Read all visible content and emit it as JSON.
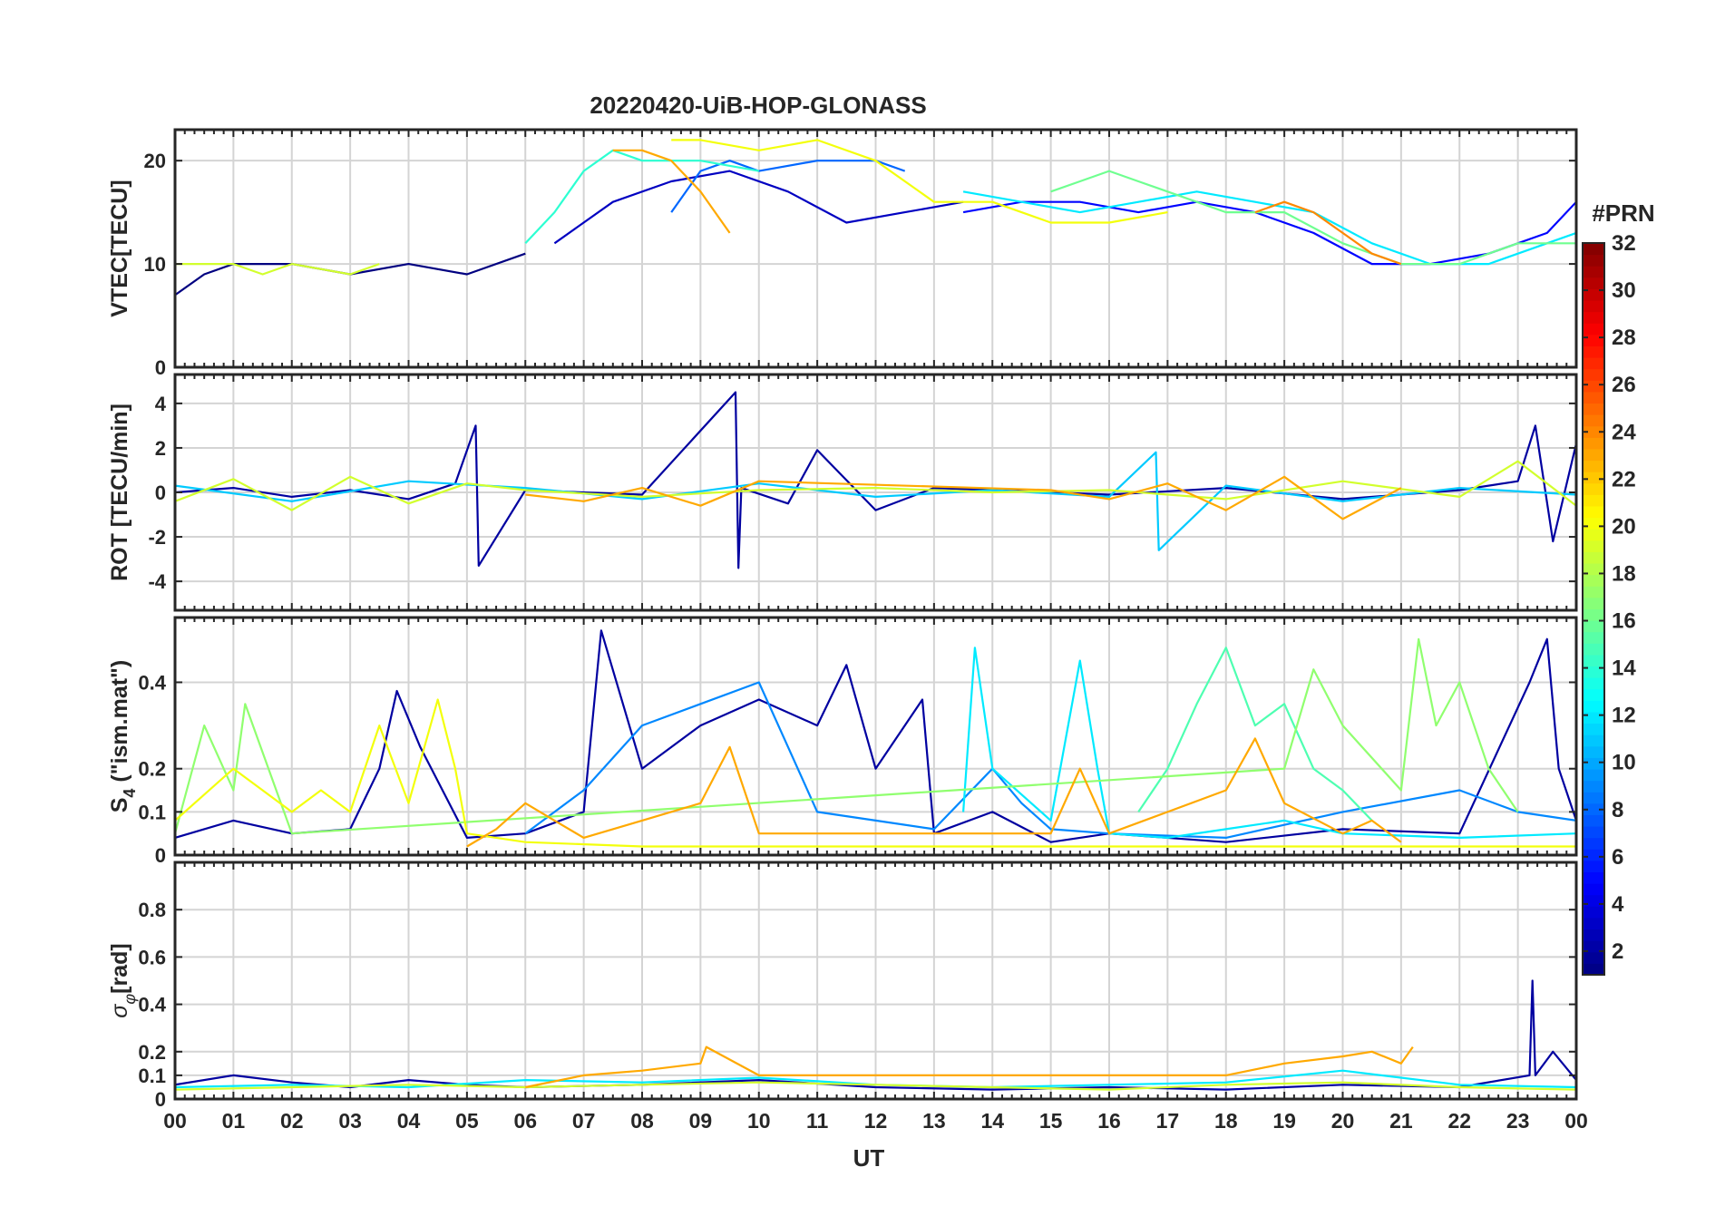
{
  "title": "20220420-UiB-HOP-GLONASS",
  "colorbar_label": "#PRN",
  "colorbar_range": [
    1,
    32
  ],
  "colorbar_ticks": [
    2,
    4,
    6,
    8,
    10,
    12,
    14,
    16,
    18,
    20,
    22,
    24,
    26,
    28,
    30,
    32
  ],
  "x_tick_labels": [
    "00",
    "01",
    "02",
    "03",
    "04",
    "05",
    "06",
    "07",
    "08",
    "09",
    "10",
    "11",
    "12",
    "13",
    "14",
    "15",
    "16",
    "17",
    "18",
    "19",
    "20",
    "21",
    "22",
    "23",
    "00"
  ],
  "xlabel": "UT",
  "colors": {
    "axes": "#262626",
    "grid": "#d4d4d4"
  },
  "chart_data": [
    {
      "type": "line",
      "panel": "vtec",
      "ylabel": "VTEC[TECU]",
      "ylim": [
        0,
        23
      ],
      "yticks": [
        0,
        10,
        20
      ],
      "xlim": [
        0,
        24
      ],
      "grid": true,
      "series": [
        {
          "prn": 1,
          "x": [
            0.0,
            0.5,
            1.0,
            2.0,
            3.0,
            4.0,
            5.0,
            6.0
          ],
          "y": [
            7,
            9,
            10,
            10,
            9,
            10,
            9,
            11
          ]
        },
        {
          "prn": 3,
          "x": [
            6.5,
            7.5,
            8.5,
            9.5,
            10.5,
            11.5,
            12.5,
            13.5
          ],
          "y": [
            12,
            16,
            18,
            19,
            17,
            14,
            15,
            16
          ]
        },
        {
          "prn": 5,
          "x": [
            13.5,
            14.5,
            15.5,
            16.5,
            17.5,
            18.5,
            19.5,
            20.5,
            21.5,
            22.5,
            23.5,
            24.0
          ],
          "y": [
            15,
            16,
            16,
            15,
            16,
            15,
            13,
            10,
            10,
            11,
            13,
            16
          ]
        },
        {
          "prn": 8,
          "x": [
            8.5,
            9.0,
            9.5,
            10.0,
            11.0,
            12.0,
            12.5
          ],
          "y": [
            15,
            19,
            20,
            19,
            20,
            20,
            19
          ]
        },
        {
          "prn": 12,
          "x": [
            13.5,
            14.5,
            15.5,
            16.5,
            17.5,
            18.5,
            19.5,
            20.5,
            21.5,
            22.5,
            23.5,
            24.0
          ],
          "y": [
            17,
            16,
            15,
            16,
            17,
            16,
            15,
            12,
            10,
            10,
            12,
            13
          ]
        },
        {
          "prn": 14,
          "x": [
            6.0,
            6.5,
            7.0,
            7.5,
            8.0,
            9.0,
            10.0
          ],
          "y": [
            12,
            15,
            19,
            21,
            20,
            20,
            19
          ]
        },
        {
          "prn": 16,
          "x": [
            15.0,
            15.5,
            16.0,
            16.5,
            17.0,
            17.5,
            18.0,
            19.0,
            20.0,
            21.0,
            22.0,
            23.0,
            24.0
          ],
          "y": [
            17,
            18,
            19,
            18,
            17,
            16,
            15,
            15,
            12,
            10,
            10,
            12,
            12
          ]
        },
        {
          "prn": 19,
          "x": [
            0.0,
            0.5,
            1.0,
            1.5,
            2.0,
            3.0,
            3.5
          ],
          "y": [
            10,
            10,
            10,
            9,
            10,
            9,
            10
          ]
        },
        {
          "prn": 20,
          "x": [
            8.5,
            9.0,
            10.0,
            11.0,
            12.0,
            13.0,
            14.0,
            15.0,
            16.0,
            17.0
          ],
          "y": [
            22,
            22,
            21,
            22,
            20,
            16,
            16,
            14,
            14,
            15
          ]
        },
        {
          "prn": 23,
          "x": [
            7.5,
            8.0,
            8.5,
            9.0,
            9.5
          ],
          "y": [
            21,
            21,
            20,
            17,
            13
          ]
        },
        {
          "prn": 24,
          "x": [
            18.5,
            19.0,
            19.5,
            20.0,
            20.5,
            21.0
          ],
          "y": [
            15,
            16,
            15,
            13,
            11,
            10
          ]
        }
      ]
    },
    {
      "type": "line",
      "panel": "rot",
      "ylabel": "ROT [TECU/min]",
      "ylim": [
        -5.3,
        5.3
      ],
      "yticks": [
        -4,
        -2,
        0,
        2,
        4
      ],
      "xlim": [
        0,
        24
      ],
      "grid": true,
      "series": [
        {
          "prn": 2,
          "x": [
            0,
            1,
            2,
            3,
            4,
            4.8,
            5.15,
            5.2,
            6,
            8,
            9.6,
            9.65,
            9.7,
            10.5,
            11,
            12,
            13,
            14,
            16,
            18,
            20,
            22,
            23,
            23.3,
            23.6,
            24
          ],
          "y": [
            0,
            0.2,
            -0.2,
            0.1,
            -0.3,
            0.4,
            3.0,
            -3.3,
            0.1,
            -0.1,
            4.5,
            -3.4,
            0.2,
            -0.5,
            1.9,
            -0.8,
            0.2,
            0.1,
            -0.1,
            0.2,
            -0.3,
            0.1,
            0.5,
            3.0,
            -2.2,
            2.2
          ]
        },
        {
          "prn": 11,
          "x": [
            0,
            2,
            4,
            6,
            8,
            10,
            12,
            14,
            16,
            16.8,
            16.85,
            18,
            20,
            22,
            24
          ],
          "y": [
            0.3,
            -0.4,
            0.5,
            0.2,
            -0.3,
            0.4,
            -0.2,
            0.1,
            -0.2,
            1.8,
            -2.6,
            0.3,
            -0.4,
            0.2,
            -0.1
          ]
        },
        {
          "prn": 19,
          "x": [
            0,
            1,
            2,
            3,
            4,
            5,
            6,
            8,
            10,
            12,
            14,
            16,
            18,
            20,
            22,
            23,
            24
          ],
          "y": [
            -0.4,
            0.6,
            -0.8,
            0.7,
            -0.5,
            0.4,
            0.1,
            -0.2,
            0.1,
            0.2,
            0,
            0.1,
            -0.3,
            0.5,
            -0.2,
            1.4,
            -0.6
          ]
        },
        {
          "prn": 23,
          "x": [
            6,
            7,
            8,
            9,
            10,
            15,
            16,
            17,
            18,
            19,
            20,
            21
          ],
          "y": [
            -0.1,
            -0.4,
            0.2,
            -0.6,
            0.5,
            0.1,
            -0.3,
            0.4,
            -0.8,
            0.7,
            -1.2,
            0.2
          ]
        }
      ]
    },
    {
      "type": "line",
      "panel": "s4",
      "ylabel": "S4 (\"ism.mat\")",
      "ylim": [
        0,
        0.55
      ],
      "yticks": [
        0,
        0.1,
        0.2,
        0.4
      ],
      "xlim": [
        0,
        24
      ],
      "grid": true,
      "series": [
        {
          "prn": 2,
          "x": [
            0,
            1,
            2,
            3,
            3.5,
            3.8,
            4.2,
            5,
            6,
            7,
            7.3,
            8,
            9,
            10,
            11,
            11.5,
            12,
            12.8,
            13,
            14,
            15,
            16,
            18,
            20,
            22,
            23.2,
            23.5,
            23.7,
            24
          ],
          "y": [
            0.04,
            0.08,
            0.05,
            0.06,
            0.2,
            0.38,
            0.25,
            0.04,
            0.05,
            0.1,
            0.52,
            0.2,
            0.3,
            0.36,
            0.3,
            0.44,
            0.2,
            0.36,
            0.05,
            0.1,
            0.03,
            0.05,
            0.03,
            0.06,
            0.05,
            0.4,
            0.5,
            0.2,
            0.08
          ]
        },
        {
          "prn": 9,
          "x": [
            6,
            7,
            8,
            9,
            10,
            11,
            12,
            13,
            14,
            14.5,
            15,
            16,
            18,
            20,
            22,
            23,
            24
          ],
          "y": [
            0.05,
            0.15,
            0.3,
            0.35,
            0.4,
            0.1,
            0.08,
            0.06,
            0.2,
            0.12,
            0.06,
            0.05,
            0.04,
            0.1,
            0.15,
            0.1,
            0.08
          ]
        },
        {
          "prn": 12,
          "x": [
            13.5,
            13.7,
            14,
            15,
            15.5,
            15.8,
            16,
            17,
            18,
            19,
            20,
            22,
            24
          ],
          "y": [
            0.1,
            0.48,
            0.2,
            0.08,
            0.45,
            0.2,
            0.05,
            0.04,
            0.06,
            0.08,
            0.05,
            0.04,
            0.05
          ]
        },
        {
          "prn": 15,
          "x": [
            16.5,
            17,
            17.5,
            18,
            18.5,
            19,
            19.5,
            20,
            20.5
          ],
          "y": [
            0.1,
            0.2,
            0.35,
            0.48,
            0.3,
            0.35,
            0.2,
            0.15,
            0.08
          ]
        },
        {
          "prn": 17,
          "x": [
            0,
            0.5,
            1,
            1.2,
            2,
            19,
            19.5,
            20,
            21,
            21.3,
            21.6,
            22,
            22.5,
            23
          ],
          "y": [
            0.05,
            0.3,
            0.15,
            0.35,
            0.05,
            0.2,
            0.43,
            0.3,
            0.15,
            0.5,
            0.3,
            0.4,
            0.2,
            0.1
          ]
        },
        {
          "prn": 20,
          "x": [
            0,
            1,
            2,
            2.5,
            3,
            3.5,
            4,
            4.5,
            4.8,
            5,
            6,
            8,
            10,
            12,
            24
          ],
          "y": [
            0.08,
            0.2,
            0.1,
            0.15,
            0.1,
            0.3,
            0.12,
            0.36,
            0.2,
            0.05,
            0.03,
            0.02,
            0.02,
            0.02,
            0.02
          ]
        },
        {
          "prn": 23,
          "x": [
            5,
            5.5,
            6,
            6.5,
            7,
            7.5,
            8,
            9,
            9.5,
            10,
            15,
            15.5,
            16,
            17,
            18,
            18.5,
            19,
            20,
            20.5,
            21
          ],
          "y": [
            0.02,
            0.06,
            0.12,
            0.08,
            0.04,
            0.06,
            0.08,
            0.12,
            0.25,
            0.05,
            0.05,
            0.2,
            0.05,
            0.1,
            0.15,
            0.27,
            0.12,
            0.05,
            0.08,
            0.03
          ]
        }
      ]
    },
    {
      "type": "line",
      "panel": "sigma",
      "ylabel": "σφ[rad]",
      "ylim": [
        0,
        1
      ],
      "yticks": [
        0,
        0.1,
        0.2,
        0.4,
        0.6,
        0.8
      ],
      "xlim": [
        0,
        24
      ],
      "grid": true,
      "series": [
        {
          "prn": 2,
          "x": [
            0,
            1,
            2,
            3,
            4,
            5,
            6,
            8,
            10,
            12,
            14,
            16,
            18,
            20,
            22,
            23.2,
            23.25,
            23.3,
            23.6,
            24
          ],
          "y": [
            0.06,
            0.1,
            0.07,
            0.05,
            0.08,
            0.06,
            0.05,
            0.06,
            0.08,
            0.05,
            0.04,
            0.05,
            0.04,
            0.06,
            0.05,
            0.1,
            0.5,
            0.1,
            0.2,
            0.08
          ]
        },
        {
          "prn": 12,
          "x": [
            0,
            2,
            4,
            6,
            8,
            10,
            12,
            14,
            16,
            18,
            20,
            22,
            24
          ],
          "y": [
            0.05,
            0.06,
            0.05,
            0.08,
            0.07,
            0.09,
            0.06,
            0.05,
            0.06,
            0.07,
            0.12,
            0.06,
            0.05
          ]
        },
        {
          "prn": 19,
          "x": [
            0,
            2,
            4,
            6,
            8,
            10,
            12,
            14,
            16,
            18,
            20,
            22,
            24
          ],
          "y": [
            0.04,
            0.05,
            0.06,
            0.05,
            0.06,
            0.07,
            0.06,
            0.05,
            0.04,
            0.06,
            0.07,
            0.05,
            0.04
          ]
        },
        {
          "prn": 23,
          "x": [
            6,
            7,
            8,
            9,
            9.1,
            10,
            18,
            19,
            20,
            20.5,
            21,
            21.2
          ],
          "y": [
            0.05,
            0.1,
            0.12,
            0.15,
            0.22,
            0.1,
            0.1,
            0.15,
            0.18,
            0.2,
            0.15,
            0.22
          ]
        }
      ]
    }
  ]
}
